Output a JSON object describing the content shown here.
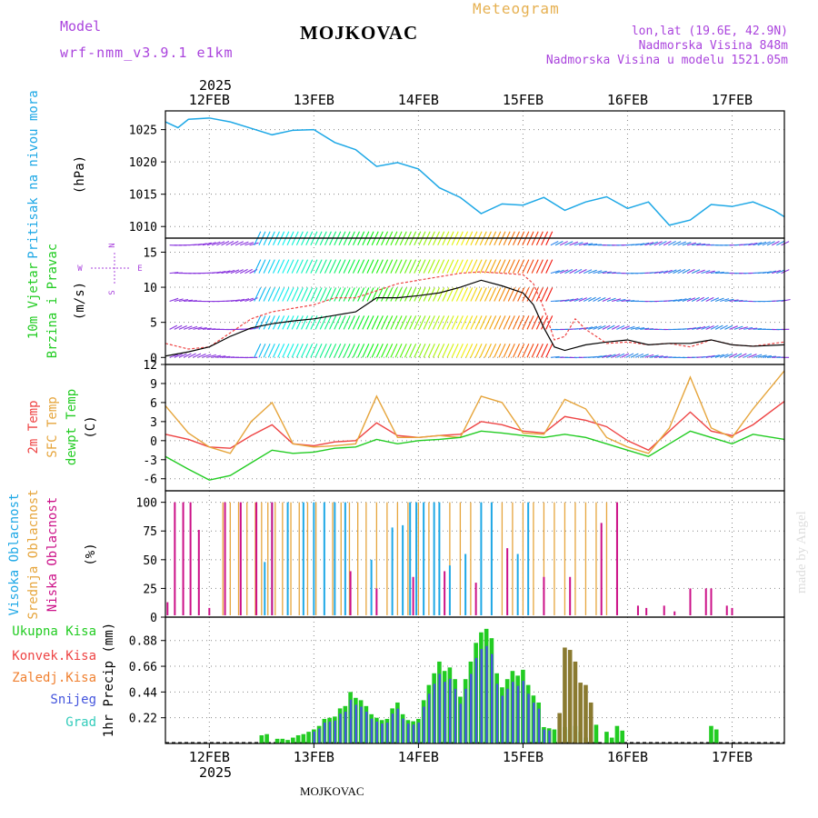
{
  "header": {
    "model_label": "Model",
    "model_name": "wrf-nmm_v3.9.1 e1km",
    "station": "MOJKOVAC",
    "title": "Meteogram",
    "lonlat": "lon,lat (19.6E, 42.9N)",
    "elevation": "Nadmorska Visina 848m",
    "model_elevation": "Nadmorska Visina u modelu 1521.05m",
    "footer_station": "MOJKOVAC",
    "watermark": "made by Angel",
    "year_top": "2025",
    "year_bottom": "2025"
  },
  "colors": {
    "pressure": "#1ea8e6",
    "temp2m": "#ee4444",
    "sfc_temp": "#e6a53c",
    "dewpt": "#22cc22",
    "cloud_high": "#1ea8e6",
    "cloud_mid": "#e6a53c",
    "cloud_low": "#cc1188",
    "precip_total": "#22cc22",
    "precip_conv": "#ee4444",
    "precip_frozen": "#f08030",
    "precip_snow": "#4455dd",
    "precip_hail": "#33ccbb",
    "model_label": "#aa44dd",
    "title": "#e6b050"
  },
  "chart_data": [
    {
      "type": "line",
      "panel": "pressure",
      "ylabel_lines": [
        "Pritisak na nivou mora"
      ],
      "yunit": "(hPa)",
      "x_ticks": [
        "12FEB",
        "13FEB",
        "14FEB",
        "15FEB",
        "16FEB",
        "17FEB"
      ],
      "yticks": [
        1010,
        1015,
        1020,
        1025
      ],
      "ylim": [
        1008.2,
        1027.9
      ],
      "xlim_days": [
        11.58,
        17.5
      ],
      "series": [
        {
          "x": [
            11.58,
            11.7,
            11.8,
            12.0,
            12.2,
            12.4,
            12.6,
            12.8,
            13.0,
            13.2,
            13.4,
            13.6,
            13.8,
            14.0,
            14.2,
            14.4,
            14.6,
            14.8,
            15.0,
            15.2,
            15.4,
            15.6,
            15.8,
            16.0,
            16.2,
            16.4,
            16.6,
            16.8,
            17.0,
            17.2,
            17.4,
            17.5
          ],
          "y": [
            1026.2,
            1025.3,
            1026.6,
            1026.8,
            1026.2,
            1025.2,
            1024.2,
            1024.9,
            1025.0,
            1023.0,
            1021.9,
            1019.3,
            1019.9,
            1018.9,
            1016.0,
            1014.5,
            1012.0,
            1013.5,
            1013.3,
            1014.5,
            1012.5,
            1013.8,
            1014.6,
            1012.8,
            1013.8,
            1010.2,
            1011.0,
            1013.4,
            1013.1,
            1013.8,
            1012.5,
            1011.5
          ]
        }
      ]
    },
    {
      "type": "line",
      "panel": "wind",
      "ylabel_lines": [
        "10m Vjetar",
        "Brzina i Pravac"
      ],
      "yunit": "(m/s)",
      "compass": [
        "N",
        "W",
        "E",
        "S"
      ],
      "yticks": [
        0,
        5,
        10,
        15
      ],
      "ylim": [
        -1,
        17
      ],
      "series": [
        {
          "name": "speed",
          "x": [
            11.58,
            11.8,
            12.0,
            12.2,
            12.4,
            12.6,
            12.8,
            13.0,
            13.2,
            13.4,
            13.6,
            13.8,
            14.0,
            14.2,
            14.4,
            14.6,
            14.8,
            15.0,
            15.1,
            15.2,
            15.3,
            15.4,
            15.6,
            15.8,
            16.0,
            16.2,
            16.4,
            16.6,
            16.8,
            17.0,
            17.2,
            17.5
          ],
          "y": [
            0.2,
            0.8,
            1.5,
            3.0,
            4.2,
            4.8,
            5.2,
            5.5,
            6.0,
            6.5,
            8.5,
            8.5,
            8.8,
            9.2,
            10.0,
            11.0,
            10.2,
            9.2,
            7.5,
            4.2,
            1.5,
            1.0,
            1.8,
            2.2,
            2.5,
            1.8,
            2.0,
            2.0,
            2.5,
            1.8,
            1.6,
            1.8
          ]
        },
        {
          "name": "gust",
          "x": [
            11.58,
            11.8,
            12.0,
            12.2,
            12.4,
            12.6,
            12.8,
            13.0,
            13.2,
            13.4,
            13.6,
            13.8,
            14.0,
            14.2,
            14.4,
            14.6,
            14.8,
            15.0,
            15.1,
            15.2,
            15.3,
            15.4,
            15.5,
            15.6,
            15.8,
            16.0,
            16.2,
            16.4,
            16.6,
            16.8,
            17.0,
            17.2,
            17.5
          ],
          "y": [
            2.0,
            1.2,
            1.5,
            3.5,
            5.5,
            6.5,
            7.0,
            7.5,
            8.5,
            8.5,
            9.5,
            10.5,
            11.0,
            11.5,
            12.0,
            12.2,
            12.0,
            11.8,
            10.5,
            7.0,
            2.5,
            3.0,
            5.5,
            4.0,
            2.0,
            2.2,
            1.8,
            2.0,
            1.5,
            2.5,
            1.8,
            1.6,
            2.2
          ]
        }
      ]
    },
    {
      "type": "line",
      "panel": "temperature",
      "ylabel_lines": [
        "2m Temp",
        "SFC Temp",
        "dewpt Temp"
      ],
      "yunit": "(C)",
      "yticks": [
        -6,
        -3,
        0,
        3,
        6,
        9,
        12
      ],
      "ylim": [
        -7.9,
        12
      ],
      "series": [
        {
          "name": "2m Temp",
          "x": [
            11.58,
            11.8,
            12.0,
            12.2,
            12.4,
            12.6,
            12.8,
            13.0,
            13.2,
            13.4,
            13.6,
            13.8,
            14.0,
            14.2,
            14.4,
            14.6,
            14.8,
            15.0,
            15.2,
            15.4,
            15.6,
            15.8,
            16.0,
            16.2,
            16.4,
            16.6,
            16.8,
            17.0,
            17.2,
            17.5
          ],
          "y": [
            1.0,
            0.2,
            -1.0,
            -1.2,
            0.8,
            2.5,
            -0.5,
            -0.8,
            -0.2,
            0.0,
            2.8,
            0.8,
            0.5,
            0.8,
            1.0,
            3.0,
            2.5,
            1.5,
            1.2,
            3.8,
            3.2,
            2.2,
            0.0,
            -1.5,
            1.5,
            4.5,
            1.5,
            0.8,
            2.5,
            6.2
          ]
        },
        {
          "name": "SFC Temp",
          "x": [
            11.58,
            11.8,
            12.0,
            12.2,
            12.4,
            12.6,
            12.8,
            13.0,
            13.2,
            13.4,
            13.6,
            13.8,
            14.0,
            14.2,
            14.4,
            14.6,
            14.8,
            15.0,
            15.2,
            15.4,
            15.6,
            15.8,
            16.0,
            16.2,
            16.4,
            16.6,
            16.8,
            17.0,
            17.2,
            17.5
          ],
          "y": [
            5.5,
            1.2,
            -1.0,
            -2.0,
            3.0,
            6.0,
            -0.5,
            -1.0,
            -0.8,
            -0.5,
            7.0,
            0.5,
            0.5,
            0.8,
            0.5,
            7.0,
            6.0,
            1.2,
            1.0,
            6.5,
            5.0,
            0.5,
            -1.0,
            -2.0,
            2.0,
            10.0,
            2.0,
            0.5,
            5.0,
            11.0
          ]
        },
        {
          "name": "dewpt Temp",
          "x": [
            11.58,
            11.8,
            12.0,
            12.2,
            12.4,
            12.6,
            12.8,
            13.0,
            13.2,
            13.4,
            13.6,
            13.8,
            14.0,
            14.2,
            14.4,
            14.6,
            14.8,
            15.0,
            15.2,
            15.4,
            15.6,
            15.8,
            16.0,
            16.2,
            16.4,
            16.6,
            16.8,
            17.0,
            17.2,
            17.5
          ],
          "y": [
            -2.5,
            -4.5,
            -6.2,
            -5.5,
            -3.5,
            -1.5,
            -2.0,
            -1.8,
            -1.2,
            -1.0,
            0.2,
            -0.5,
            0.0,
            0.2,
            0.5,
            1.5,
            1.2,
            0.8,
            0.5,
            1.0,
            0.5,
            -0.5,
            -1.5,
            -2.5,
            -0.5,
            1.5,
            0.5,
            -0.5,
            1.0,
            0.2
          ]
        }
      ]
    },
    {
      "type": "bar",
      "panel": "clouds",
      "ylabel_lines": [
        "Visoka Oblacnost",
        "Srednja Oblacnost",
        "Niska Oblacnost"
      ],
      "yunit": "(%)",
      "yticks": [
        0,
        25,
        50,
        75,
        100
      ],
      "ylim": [
        0,
        110
      ],
      "series": [
        {
          "name": "Visoka Oblacnost",
          "x": [
            12.53,
            12.6,
            12.75,
            12.9,
            13.0,
            13.1,
            13.2,
            13.3,
            13.55,
            13.75,
            13.85,
            13.92,
            13.98,
            14.05,
            14.15,
            14.2,
            14.3,
            14.45,
            14.6,
            14.7,
            14.95,
            15.05
          ],
          "y": [
            48,
            100,
            100,
            100,
            100,
            100,
            100,
            100,
            50,
            78,
            80,
            100,
            100,
            100,
            100,
            100,
            45,
            55,
            100,
            100,
            55,
            100
          ]
        },
        {
          "name": "Srednja Oblacnost",
          "x": [
            12.13,
            12.2,
            12.28,
            12.36,
            12.44,
            12.5,
            12.56,
            12.63,
            12.7,
            12.78,
            12.86,
            12.94,
            13.02,
            13.1,
            13.18,
            13.26,
            13.34,
            13.42,
            13.5,
            13.6,
            13.7,
            13.8,
            13.9,
            14.0,
            14.1,
            14.2,
            14.3,
            14.4,
            14.5,
            14.6,
            14.7,
            14.8,
            14.9,
            15.0,
            15.1,
            15.2,
            15.3,
            15.4,
            15.5,
            15.6,
            15.7,
            15.8,
            15.9
          ],
          "y": [
            100,
            100,
            100,
            100,
            100,
            100,
            100,
            100,
            100,
            100,
            100,
            100,
            100,
            100,
            100,
            100,
            100,
            100,
            100,
            100,
            100,
            100,
            100,
            100,
            100,
            100,
            100,
            100,
            100,
            100,
            100,
            100,
            100,
            100,
            100,
            100,
            100,
            100,
            100,
            100,
            100,
            100,
            100
          ]
        },
        {
          "name": "Niska Oblacnost",
          "x": [
            11.6,
            11.67,
            11.75,
            11.82,
            11.9,
            12.0,
            12.15,
            12.3,
            12.45,
            12.6,
            13.35,
            13.6,
            13.95,
            14.25,
            14.55,
            14.85,
            15.2,
            15.45,
            15.75,
            15.9,
            16.1,
            16.18,
            16.35,
            16.45,
            16.6,
            16.75,
            16.8,
            16.95,
            17.0
          ],
          "y": [
            13,
            100,
            100,
            100,
            76,
            8,
            100,
            100,
            100,
            100,
            40,
            25,
            35,
            40,
            30,
            60,
            35,
            35,
            82,
            100,
            10,
            8,
            10,
            5,
            25,
            25,
            25,
            10,
            8
          ]
        }
      ]
    },
    {
      "type": "bar",
      "panel": "precipitation",
      "ylabel_lines": [
        "1hr Precip (mm)"
      ],
      "legend": [
        "Ukupna Kisa",
        "Konvek.Kisa",
        "Zaledj.Kisa",
        "Snijeg",
        "Grad"
      ],
      "yticks": [
        0.22,
        0.44,
        0.66,
        0.88
      ],
      "ylim": [
        0,
        1.08
      ],
      "bar_width_days": 0.04,
      "series": [
        {
          "name": "Ukupna Kisa",
          "x": [
            12.5,
            12.55,
            12.65,
            12.7,
            12.75,
            12.8,
            12.85,
            12.9,
            12.95,
            13.0,
            13.05,
            13.1,
            13.15,
            13.2,
            13.25,
            13.3,
            13.35,
            13.4,
            13.45,
            13.5,
            13.55,
            13.6,
            13.65,
            13.7,
            13.75,
            13.8,
            13.85,
            13.9,
            13.95,
            14.0,
            14.05,
            14.1,
            14.15,
            14.2,
            14.25,
            14.3,
            14.35,
            14.4,
            14.45,
            14.5,
            14.55,
            14.6,
            14.65,
            14.7,
            14.75,
            14.8,
            14.85,
            14.9,
            14.95,
            15.0,
            15.05,
            15.1,
            15.15,
            15.2,
            15.25,
            15.3,
            15.4,
            15.45,
            15.5,
            15.55,
            15.6,
            15.7,
            15.8,
            15.85,
            15.9,
            15.95,
            16.8,
            16.85
          ],
          "y": [
            0.07,
            0.08,
            0.04,
            0.04,
            0.03,
            0.05,
            0.07,
            0.08,
            0.1,
            0.12,
            0.15,
            0.21,
            0.22,
            0.23,
            0.3,
            0.32,
            0.44,
            0.39,
            0.37,
            0.32,
            0.25,
            0.22,
            0.2,
            0.21,
            0.3,
            0.35,
            0.25,
            0.2,
            0.19,
            0.21,
            0.37,
            0.5,
            0.6,
            0.7,
            0.62,
            0.65,
            0.55,
            0.4,
            0.55,
            0.7,
            0.86,
            0.95,
            0.98,
            0.9,
            0.6,
            0.48,
            0.55,
            0.62,
            0.58,
            0.63,
            0.5,
            0.41,
            0.35,
            0.14,
            0.13,
            0.12,
            0.14,
            0.12,
            0.15,
            0.1,
            0.05,
            0.16,
            0.1,
            0.05,
            0.15,
            0.11,
            0.15,
            0.12
          ]
        },
        {
          "name": "Zaledj.Kisa",
          "x": [
            15.35,
            15.4,
            15.45,
            15.5,
            15.55,
            15.6,
            15.65
          ],
          "y": [
            0.26,
            0.82,
            0.8,
            0.7,
            0.52,
            0.5,
            0.35
          ]
        }
      ]
    }
  ]
}
